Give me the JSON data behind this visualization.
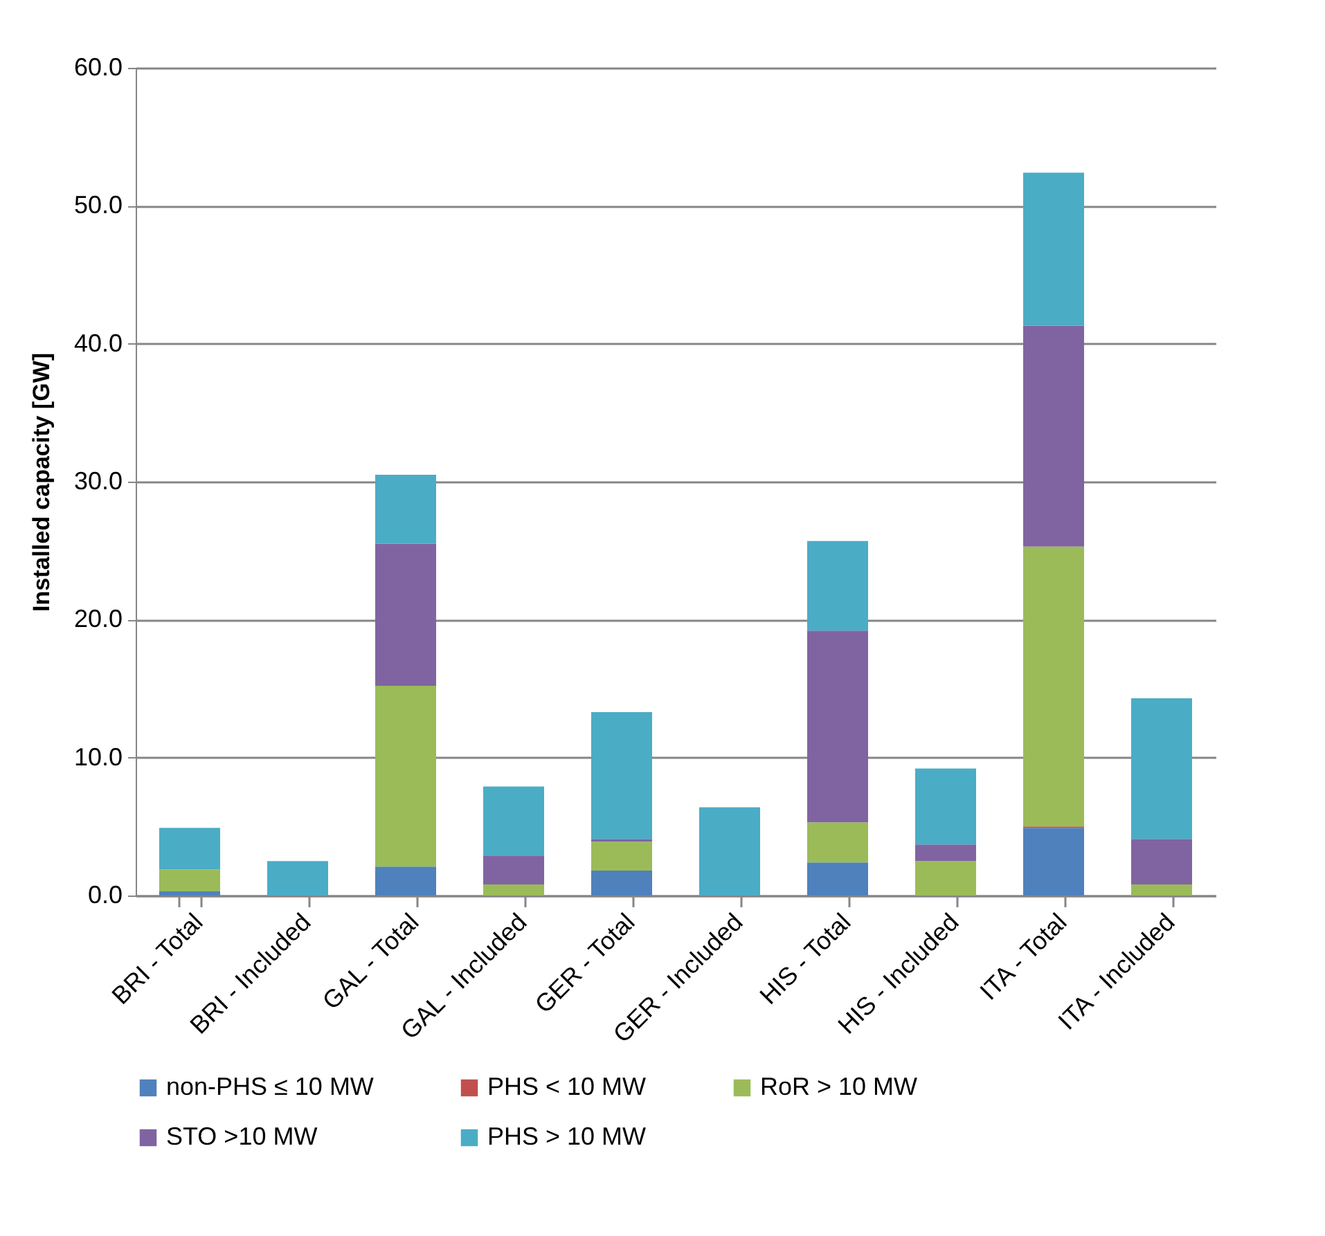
{
  "chart_data": {
    "type": "bar",
    "stacked": true,
    "ylabel": "Installed capacity [GW]",
    "categories": [
      "BRI - Total",
      "BRI - Included",
      "GAL - Total",
      "GAL - Included",
      "GER - Total",
      "GER - Included",
      "HIS - Total",
      "HIS - Included",
      "ITA - Total",
      "ITA - Included"
    ],
    "series": [
      {
        "name": "non-PHS ≤ 10 MW",
        "color": "#4f81bd",
        "values": [
          0.3,
          0,
          2.1,
          0,
          1.8,
          0,
          2.4,
          0,
          4.9,
          0
        ]
      },
      {
        "name": "PHS < 10 MW",
        "color": "#c0504d",
        "values": [
          0,
          0,
          0,
          0,
          0,
          0,
          0,
          0,
          0.1,
          0
        ]
      },
      {
        "name": "RoR > 10 MW",
        "color": "#9bbb59",
        "values": [
          1.6,
          0,
          13.1,
          0.8,
          2.1,
          0,
          2.9,
          2.5,
          20.3,
          0.8
        ]
      },
      {
        "name": "STO >10 MW",
        "color": "#8064a2",
        "values": [
          0,
          0,
          10.3,
          2.1,
          0.2,
          0,
          13.9,
          1.2,
          16.0,
          3.3
        ]
      },
      {
        "name": "PHS > 10 MW",
        "color": "#4bacc6",
        "values": [
          3.0,
          2.5,
          5.0,
          5.0,
          9.2,
          6.4,
          6.5,
          5.5,
          11.1,
          10.2
        ]
      }
    ],
    "ylim": [
      0,
      60
    ],
    "yticks": [
      {
        "value": 0,
        "label": "0.0"
      },
      {
        "value": 10,
        "label": "10.0"
      },
      {
        "value": 20,
        "label": "20.0"
      },
      {
        "value": 30,
        "label": "30.0"
      },
      {
        "value": 40,
        "label": "40.0"
      },
      {
        "value": 50,
        "label": "50.0"
      },
      {
        "value": 60,
        "label": "60.0"
      }
    ],
    "grid": "y",
    "legend": "bottom"
  }
}
